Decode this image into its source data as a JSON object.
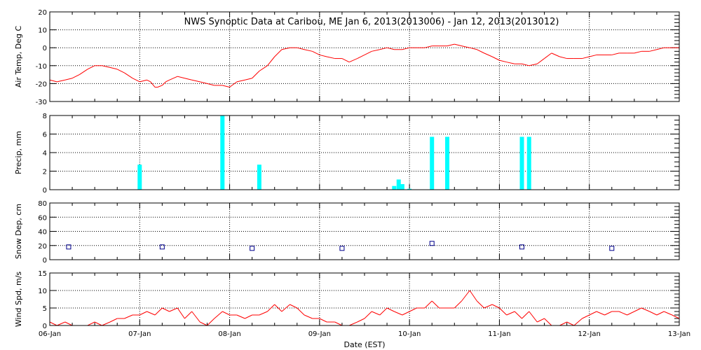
{
  "title": "NWS Synoptic Data at Caribou, ME   Jan  6, 2013(2013006) - Jan 12, 2013(2013012)",
  "xlabel": "Date (EST)",
  "x_ticks": [
    "06-Jan",
    "07-Jan",
    "08-Jan",
    "09-Jan",
    "10-Jan",
    "11-Jan",
    "12-Jan",
    "13-Jan"
  ],
  "colors": {
    "temp": "#ff0000",
    "precip": "#00ffff",
    "snow": "#00008b",
    "wind": "#ff0000",
    "grid": "#000000"
  },
  "chart_data": [
    {
      "type": "line",
      "ylabel": "Air Temp, Deg C",
      "ylim": [
        -30,
        20
      ],
      "yticks": [
        -30,
        -20,
        -10,
        0,
        10,
        20
      ],
      "x_unit": "days since 06-Jan 00:00",
      "xlim": [
        0,
        7
      ],
      "grid": true,
      "series": [
        {
          "name": "Air Temp",
          "x": [
            0,
            0.08,
            0.17,
            0.25,
            0.33,
            0.42,
            0.5,
            0.58,
            0.67,
            0.75,
            0.83,
            0.92,
            1.0,
            1.08,
            1.12,
            1.17,
            1.2,
            1.25,
            1.29,
            1.33,
            1.42,
            1.5,
            1.58,
            1.67,
            1.75,
            1.83,
            1.92,
            2.0,
            2.08,
            2.17,
            2.25,
            2.33,
            2.42,
            2.5,
            2.58,
            2.67,
            2.75,
            2.83,
            2.92,
            3.0,
            3.08,
            3.17,
            3.25,
            3.33,
            3.42,
            3.5,
            3.58,
            3.67,
            3.75,
            3.83,
            3.92,
            4.0,
            4.08,
            4.17,
            4.25,
            4.33,
            4.42,
            4.5,
            4.58,
            4.67,
            4.75,
            4.83,
            4.92,
            5.0,
            5.08,
            5.17,
            5.25,
            5.33,
            5.42,
            5.5,
            5.58,
            5.67,
            5.75,
            5.83,
            5.92,
            6.0,
            6.08,
            6.17,
            6.25,
            6.33,
            6.42,
            6.5,
            6.58,
            6.67,
            6.75,
            6.83,
            6.92,
            7.0
          ],
          "y": [
            -18,
            -19,
            -18,
            -17,
            -15,
            -12,
            -10,
            -10,
            -11,
            -12,
            -14,
            -17,
            -19,
            -18,
            -19,
            -22,
            -22,
            -21,
            -19,
            -18,
            -16,
            -17,
            -18,
            -19,
            -20,
            -21,
            -21,
            -22,
            -19,
            -18,
            -17,
            -13,
            -10,
            -5,
            -1,
            0,
            0,
            -1,
            -2,
            -4,
            -5,
            -6,
            -6,
            -8,
            -6,
            -4,
            -2,
            -1,
            0,
            -1,
            -1,
            0,
            0,
            0,
            1,
            1,
            1,
            2,
            1,
            0,
            -1,
            -3,
            -5,
            -7,
            -8,
            -9,
            -9,
            -10,
            -9,
            -6,
            -3,
            -5,
            -6,
            -6,
            -6,
            -5,
            -4,
            -4,
            -4,
            -3,
            -3,
            -3,
            -2,
            -2,
            -1,
            0,
            0,
            0
          ]
        }
      ]
    },
    {
      "type": "bar",
      "ylabel": "Precip, mm",
      "ylim": [
        0,
        8
      ],
      "yticks": [
        0,
        2,
        4,
        6,
        8
      ],
      "x_unit": "days since 06-Jan 00:00",
      "xlim": [
        0,
        7
      ],
      "grid": true,
      "series": [
        {
          "name": "Precip",
          "x": [
            1.0,
            1.92,
            2.33,
            3.83,
            3.88,
            3.92,
            4.0,
            4.25,
            4.42,
            5.25,
            5.33
          ],
          "values": [
            2.7,
            8.0,
            2.7,
            0.4,
            1.1,
            0.6,
            0.1,
            5.7,
            5.7,
            5.7,
            5.7
          ]
        }
      ]
    },
    {
      "type": "scatter",
      "ylabel": "Snow Dep, cm",
      "ylim": [
        0,
        80
      ],
      "yticks": [
        0,
        20,
        40,
        60,
        80
      ],
      "x_unit": "days since 06-Jan 00:00",
      "xlim": [
        0,
        7
      ],
      "grid": true,
      "series": [
        {
          "name": "Snow Depth",
          "x": [
            0.21,
            1.25,
            2.25,
            3.25,
            4.25,
            5.25,
            6.25
          ],
          "y": [
            18,
            18,
            16,
            16,
            23,
            18,
            16
          ]
        }
      ]
    },
    {
      "type": "line",
      "ylabel": "Wind Spd, m/s",
      "ylim": [
        0,
        15
      ],
      "yticks": [
        0,
        5,
        10,
        15
      ],
      "x_unit": "days since 06-Jan 00:00",
      "xlim": [
        0,
        7
      ],
      "grid": true,
      "series": [
        {
          "name": "Wind Speed",
          "x": [
            0,
            0.08,
            0.17,
            0.25,
            0.33,
            0.42,
            0.5,
            0.58,
            0.67,
            0.75,
            0.83,
            0.92,
            1.0,
            1.08,
            1.17,
            1.25,
            1.33,
            1.42,
            1.5,
            1.58,
            1.67,
            1.75,
            1.83,
            1.92,
            2.0,
            2.08,
            2.17,
            2.25,
            2.33,
            2.42,
            2.5,
            2.58,
            2.67,
            2.75,
            2.83,
            2.92,
            3.0,
            3.08,
            3.17,
            3.25,
            3.33,
            3.42,
            3.5,
            3.58,
            3.67,
            3.75,
            3.83,
            3.92,
            4.0,
            4.08,
            4.17,
            4.25,
            4.33,
            4.42,
            4.5,
            4.58,
            4.67,
            4.75,
            4.83,
            4.92,
            5.0,
            5.08,
            5.17,
            5.25,
            5.33,
            5.42,
            5.5,
            5.58,
            5.67,
            5.75,
            5.83,
            5.92,
            6.0,
            6.08,
            6.17,
            6.25,
            6.33,
            6.42,
            6.5,
            6.58,
            6.67,
            6.75,
            6.83,
            6.92,
            7.0
          ],
          "y": [
            1,
            0,
            1,
            0,
            0,
            0,
            1,
            0,
            1,
            2,
            2,
            3,
            3,
            4,
            3,
            5,
            4,
            5,
            2,
            4,
            1,
            0,
            2,
            4,
            3,
            3,
            2,
            3,
            3,
            4,
            6,
            4,
            6,
            5,
            3,
            2,
            2,
            1,
            1,
            0,
            0,
            1,
            2,
            4,
            3,
            5,
            4,
            3,
            4,
            5,
            5,
            7,
            5,
            5,
            5,
            7,
            10,
            7,
            5,
            6,
            5,
            3,
            4,
            2,
            4,
            1,
            2,
            0,
            0,
            1,
            0,
            2,
            3,
            4,
            3,
            4,
            4,
            3,
            4,
            5,
            4,
            3,
            4,
            3,
            2
          ]
        }
      ]
    }
  ]
}
